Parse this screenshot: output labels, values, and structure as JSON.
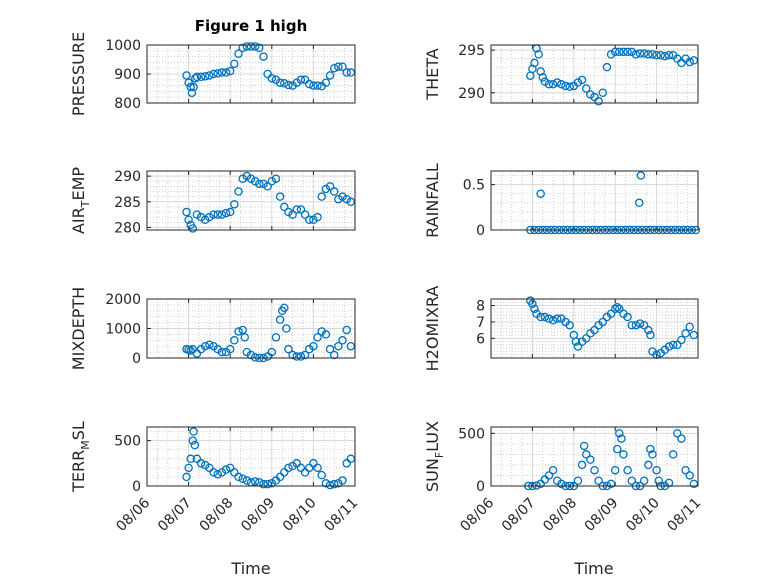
{
  "chart_data": [
    {
      "id": "pressure",
      "type": "scatter",
      "title": "Figure 1 high",
      "ylabel": "PRESSURE",
      "ylim": [
        800,
        1000
      ],
      "yticks": [
        800,
        900,
        1000
      ],
      "x": [
        0.95,
        1.0,
        1.05,
        1.08,
        1.12,
        1.16,
        1.2,
        1.3,
        1.4,
        1.5,
        1.6,
        1.7,
        1.8,
        1.9,
        2.0,
        2.1,
        2.2,
        2.3,
        2.4,
        2.5,
        2.6,
        2.7,
        2.8,
        2.9,
        3.0,
        3.1,
        3.2,
        3.3,
        3.4,
        3.5,
        3.6,
        3.7,
        3.8,
        3.9,
        4.0,
        4.1,
        4.2,
        4.3,
        4.4,
        4.5,
        4.6,
        4.7,
        4.8,
        4.9
      ],
      "y": [
        895,
        870,
        855,
        835,
        855,
        885,
        890,
        890,
        892,
        895,
        900,
        902,
        905,
        905,
        910,
        935,
        970,
        990,
        995,
        995,
        995,
        990,
        960,
        900,
        885,
        880,
        870,
        868,
        862,
        860,
        870,
        880,
        880,
        865,
        860,
        860,
        858,
        870,
        895,
        920,
        925,
        925,
        905,
        905
      ]
    },
    {
      "id": "theta",
      "type": "scatter",
      "title": "",
      "ylabel": "THETA",
      "ylim": [
        288.8,
        295.6
      ],
      "yticks": [
        290,
        295
      ],
      "x": [
        0.95,
        1.0,
        1.05,
        1.1,
        1.15,
        1.2,
        1.25,
        1.3,
        1.4,
        1.5,
        1.6,
        1.7,
        1.8,
        1.9,
        2.0,
        2.1,
        2.2,
        2.3,
        2.4,
        2.5,
        2.6,
        2.7,
        2.8,
        2.9,
        3.0,
        3.1,
        3.2,
        3.3,
        3.4,
        3.5,
        3.6,
        3.7,
        3.8,
        3.9,
        4.0,
        4.1,
        4.2,
        4.3,
        4.4,
        4.5,
        4.6,
        4.7,
        4.8,
        4.9
      ],
      "y": [
        292.0,
        292.8,
        293.5,
        295.2,
        294.5,
        292.5,
        291.8,
        291.3,
        291.0,
        291.0,
        291.2,
        291.0,
        290.8,
        290.7,
        290.8,
        291.2,
        291.5,
        290.5,
        289.8,
        289.5,
        289.0,
        290.0,
        293.0,
        294.5,
        294.8,
        294.8,
        294.8,
        294.8,
        294.8,
        294.5,
        294.6,
        294.6,
        294.5,
        294.5,
        294.4,
        294.4,
        294.3,
        294.4,
        294.4,
        294.0,
        293.5,
        294.0,
        293.6,
        293.8
      ]
    },
    {
      "id": "air_temp",
      "type": "scatter",
      "title": "",
      "ylabel": "AIR_TEMP",
      "ylim": [
        279.5,
        291
      ],
      "yticks": [
        280,
        285,
        290
      ],
      "x": [
        0.95,
        1.0,
        1.05,
        1.1,
        1.2,
        1.3,
        1.4,
        1.5,
        1.6,
        1.7,
        1.8,
        1.9,
        2.0,
        2.1,
        2.2,
        2.3,
        2.4,
        2.5,
        2.6,
        2.7,
        2.8,
        2.9,
        3.0,
        3.1,
        3.2,
        3.3,
        3.4,
        3.5,
        3.6,
        3.7,
        3.8,
        3.9,
        4.0,
        4.1,
        4.2,
        4.3,
        4.4,
        4.5,
        4.6,
        4.7,
        4.8,
        4.9
      ],
      "y": [
        283.0,
        281.5,
        280.5,
        279.8,
        282.5,
        282.0,
        281.5,
        282.0,
        282.5,
        282.5,
        282.5,
        282.8,
        283.0,
        284.5,
        287.0,
        289.5,
        290.0,
        289.5,
        289.0,
        288.5,
        288.5,
        288.0,
        289.0,
        289.5,
        286.0,
        284.0,
        283.0,
        282.5,
        283.5,
        283.5,
        282.5,
        281.5,
        281.5,
        282.0,
        286.0,
        287.5,
        288.0,
        287.0,
        285.5,
        286.0,
        285.5,
        285.0
      ]
    },
    {
      "id": "rainfall",
      "type": "scatter",
      "title": "",
      "ylabel": "RAINFALL",
      "ylim": [
        0,
        0.65
      ],
      "yticks": [
        0,
        0.5
      ],
      "ytick_labels": [
        "0",
        "0.5"
      ],
      "x": [
        0.95,
        1.05,
        1.15,
        1.25,
        1.35,
        1.45,
        1.55,
        1.65,
        1.75,
        1.85,
        1.95,
        2.05,
        2.15,
        2.25,
        2.35,
        2.45,
        2.55,
        2.65,
        2.75,
        2.85,
        2.95,
        3.05,
        3.15,
        3.25,
        3.35,
        3.45,
        3.55,
        3.65,
        3.75,
        3.85,
        3.95,
        4.05,
        4.15,
        4.25,
        4.35,
        4.45,
        4.55,
        4.65,
        4.75,
        4.85,
        4.95,
        1.2,
        3.58,
        3.62
      ],
      "y": [
        0,
        0,
        0,
        0,
        0,
        0,
        0,
        0,
        0,
        0,
        0,
        0,
        0,
        0,
        0,
        0,
        0,
        0,
        0,
        0,
        0,
        0,
        0,
        0,
        0,
        0,
        0,
        0,
        0,
        0,
        0,
        0,
        0,
        0,
        0,
        0,
        0,
        0,
        0,
        0,
        0,
        0.4,
        0.3,
        0.6
      ]
    },
    {
      "id": "mixdepth",
      "type": "scatter",
      "title": "",
      "ylabel": "MIXDEPTH",
      "ylim": [
        0,
        2000
      ],
      "yticks": [
        0,
        1000,
        2000
      ],
      "x": [
        0.95,
        1.0,
        1.05,
        1.1,
        1.2,
        1.3,
        1.4,
        1.5,
        1.6,
        1.7,
        1.8,
        1.9,
        2.0,
        2.1,
        2.2,
        2.3,
        2.35,
        2.4,
        2.5,
        2.6,
        2.7,
        2.8,
        2.9,
        3.0,
        3.1,
        3.2,
        3.25,
        3.3,
        3.35,
        3.4,
        3.5,
        3.6,
        3.7,
        3.8,
        3.9,
        4.0,
        4.1,
        4.2,
        4.3,
        4.4,
        4.5,
        4.6,
        4.7,
        4.8,
        4.9
      ],
      "y": [
        300,
        280,
        250,
        300,
        150,
        300,
        400,
        450,
        400,
        300,
        200,
        200,
        300,
        600,
        900,
        950,
        700,
        200,
        100,
        20,
        0,
        0,
        50,
        200,
        700,
        1300,
        1600,
        1700,
        1000,
        300,
        100,
        50,
        50,
        100,
        300,
        400,
        700,
        900,
        800,
        300,
        100,
        400,
        600,
        950,
        400
      ]
    },
    {
      "id": "h2omixra",
      "type": "scatter",
      "title": "",
      "ylabel": "H2OMIXRA",
      "ylim": [
        4.8,
        8.4
      ],
      "yticks": [
        6,
        7,
        8
      ],
      "x": [
        0.95,
        1.0,
        1.05,
        1.1,
        1.2,
        1.3,
        1.4,
        1.5,
        1.6,
        1.7,
        1.8,
        1.9,
        2.0,
        2.05,
        2.1,
        2.2,
        2.3,
        2.4,
        2.5,
        2.6,
        2.7,
        2.8,
        2.9,
        3.0,
        3.05,
        3.1,
        3.2,
        3.3,
        3.4,
        3.5,
        3.6,
        3.7,
        3.8,
        3.85,
        3.9,
        4.0,
        4.1,
        4.2,
        4.3,
        4.4,
        4.5,
        4.6,
        4.7,
        4.8,
        4.9
      ],
      "y": [
        8.3,
        8.1,
        7.8,
        7.5,
        7.3,
        7.3,
        7.2,
        7.1,
        7.2,
        7.2,
        7.0,
        6.8,
        6.2,
        5.8,
        5.5,
        5.8,
        6.0,
        6.3,
        6.5,
        6.8,
        7.0,
        7.3,
        7.5,
        7.8,
        7.9,
        7.8,
        7.5,
        7.3,
        6.8,
        6.8,
        6.9,
        6.8,
        6.5,
        6.2,
        5.2,
        5.0,
        5.1,
        5.3,
        5.5,
        5.6,
        5.6,
        5.9,
        6.3,
        6.7,
        6.2
      ]
    },
    {
      "id": "terr_msl",
      "type": "scatter",
      "title": "",
      "ylabel": "TERR_MSL",
      "ylim": [
        0,
        650
      ],
      "yticks": [
        0,
        500
      ],
      "x": [
        0.95,
        1.0,
        1.05,
        1.1,
        1.12,
        1.15,
        1.2,
        1.3,
        1.4,
        1.5,
        1.6,
        1.7,
        1.8,
        1.9,
        2.0,
        2.1,
        2.2,
        2.3,
        2.4,
        2.5,
        2.6,
        2.7,
        2.8,
        2.9,
        3.0,
        3.1,
        3.2,
        3.3,
        3.4,
        3.5,
        3.6,
        3.7,
        3.8,
        3.9,
        4.0,
        4.1,
        4.2,
        4.3,
        4.4,
        4.5,
        4.6,
        4.7,
        4.8,
        4.9
      ],
      "y": [
        100,
        200,
        300,
        500,
        600,
        450,
        300,
        250,
        230,
        200,
        150,
        130,
        150,
        180,
        200,
        150,
        100,
        80,
        60,
        40,
        50,
        40,
        20,
        20,
        30,
        60,
        100,
        150,
        200,
        220,
        250,
        200,
        150,
        200,
        250,
        200,
        120,
        30,
        10,
        20,
        30,
        60,
        250,
        300
      ]
    },
    {
      "id": "sun_flux",
      "type": "scatter",
      "title": "",
      "ylabel": "SUN_FLUX",
      "ylim": [
        0,
        560
      ],
      "yticks": [
        0,
        500
      ],
      "x": [
        0.9,
        1.0,
        1.1,
        1.2,
        1.3,
        1.4,
        1.5,
        1.6,
        1.7,
        1.8,
        1.9,
        2.0,
        2.1,
        2.2,
        2.25,
        2.3,
        2.4,
        2.5,
        2.6,
        2.7,
        2.8,
        2.9,
        3.0,
        3.05,
        3.1,
        3.15,
        3.2,
        3.3,
        3.4,
        3.5,
        3.6,
        3.7,
        3.8,
        3.85,
        3.9,
        4.0,
        4.05,
        4.1,
        4.2,
        4.3,
        4.4,
        4.5,
        4.6,
        4.7,
        4.8,
        4.9
      ],
      "y": [
        0,
        0,
        5,
        20,
        60,
        100,
        150,
        50,
        20,
        0,
        0,
        0,
        50,
        200,
        380,
        300,
        250,
        150,
        50,
        0,
        0,
        20,
        150,
        350,
        500,
        450,
        300,
        150,
        50,
        0,
        0,
        50,
        200,
        350,
        300,
        150,
        50,
        0,
        0,
        30,
        300,
        500,
        450,
        150,
        100,
        20
      ]
    }
  ],
  "axis_labels": {
    "air_temp": {
      "main": "AIR",
      "sub": "T",
      "rest": "EMP"
    },
    "terr_msl": {
      "main": "TERR",
      "sub": "M",
      "rest": "SL"
    },
    "sun_flux": {
      "main": "SUN",
      "sub": "F",
      "rest": "LUX"
    }
  },
  "x_axis": {
    "label": "Time",
    "ticks": [
      0,
      1,
      2,
      3,
      4,
      5
    ],
    "tick_labels": [
      "08/06",
      "08/07",
      "08/08",
      "08/09",
      "08/10",
      "08/11"
    ],
    "xlim": [
      0,
      5
    ]
  },
  "colors": {
    "marker": "#0072bd",
    "axis": "#262626",
    "grid": "#d9d9d9",
    "minor_grid": "#bfbfbf"
  }
}
